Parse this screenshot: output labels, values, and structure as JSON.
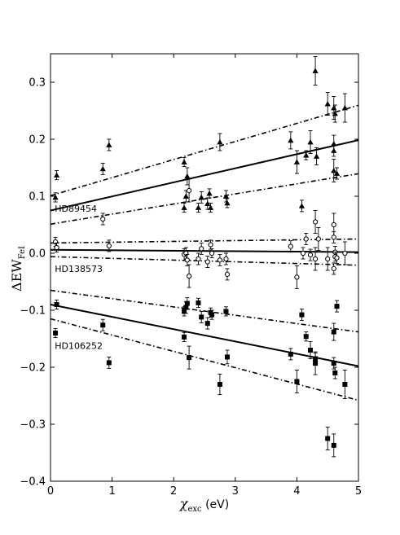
{
  "chart_data": {
    "type": "scatter",
    "title": "",
    "xlabel": {
      "main": "χ",
      "sub": "exc",
      "unit": " (eV)"
    },
    "ylabel": {
      "main": "ΔEW",
      "sub": "FeI"
    },
    "xlim": [
      0,
      5
    ],
    "ylim": [
      -0.4,
      0.35
    ],
    "xticks": [
      0,
      1,
      2,
      3,
      4,
      5
    ],
    "yticks": [
      -0.4,
      -0.3,
      -0.2,
      -0.1,
      0.0,
      0.1,
      0.2,
      0.3
    ],
    "xtick_labels": [
      "0",
      "1",
      "2",
      "3",
      "4",
      "5"
    ],
    "ytick_labels": [
      "−0.4",
      "−0.3",
      "−0.2",
      "−0.1",
      "0.0",
      "0.1",
      "0.2",
      "0.3"
    ],
    "grid": false,
    "series": [
      {
        "name": "HD89454",
        "marker": "triangle",
        "filled": true,
        "label_pos": [
          0.07,
          0.073
        ],
        "fit": {
          "intercept": 0.075,
          "slope": 0.0247
        },
        "upper": {
          "intercept": 0.101,
          "slope": 0.0317
        },
        "lower": {
          "intercept": 0.051,
          "slope": 0.0177
        },
        "points": [
          [
            0.08,
            0.098,
            0.008
          ],
          [
            0.1,
            0.137,
            0.008
          ],
          [
            0.85,
            0.148,
            0.01
          ],
          [
            0.95,
            0.19,
            0.01
          ],
          [
            2.17,
            0.16,
            0.008
          ],
          [
            2.17,
            0.08,
            0.008
          ],
          [
            2.2,
            0.1,
            0.01
          ],
          [
            2.22,
            0.135,
            0.015
          ],
          [
            2.4,
            0.08,
            0.008
          ],
          [
            2.45,
            0.098,
            0.01
          ],
          [
            2.55,
            0.087,
            0.01
          ],
          [
            2.58,
            0.105,
            0.008
          ],
          [
            2.6,
            0.08,
            0.008
          ],
          [
            2.75,
            0.195,
            0.015
          ],
          [
            2.85,
            0.1,
            0.01
          ],
          [
            2.87,
            0.088,
            0.008
          ],
          [
            3.9,
            0.198,
            0.015
          ],
          [
            4.0,
            0.16,
            0.02
          ],
          [
            4.08,
            0.083,
            0.01
          ],
          [
            4.15,
            0.172,
            0.008
          ],
          [
            4.22,
            0.195,
            0.02
          ],
          [
            4.3,
            0.32,
            0.025
          ],
          [
            4.32,
            0.17,
            0.015
          ],
          [
            4.5,
            0.262,
            0.02
          ],
          [
            4.6,
            0.255,
            0.02
          ],
          [
            4.62,
            0.245,
            0.015
          ],
          [
            4.6,
            0.192,
            0.015
          ],
          [
            4.6,
            0.18,
            0.01
          ],
          [
            4.6,
            0.145,
            0.02
          ],
          [
            4.65,
            0.14,
            0.01
          ],
          [
            4.78,
            0.255,
            0.025
          ]
        ]
      },
      {
        "name": "HD138573",
        "marker": "circle",
        "filled": false,
        "label_pos": [
          0.07,
          -0.033
        ],
        "fit": {
          "intercept": 0.006,
          "slope": -0.0008
        },
        "upper": {
          "intercept": 0.018,
          "slope": 0.0014
        },
        "lower": {
          "intercept": -0.006,
          "slope": -0.003
        },
        "points": [
          [
            0.08,
            0.02,
            0.008
          ],
          [
            0.1,
            0.01,
            0.008
          ],
          [
            0.85,
            0.06,
            0.01
          ],
          [
            0.95,
            0.013,
            0.01
          ],
          [
            2.17,
            -0.002,
            0.01
          ],
          [
            2.2,
            0.0,
            0.01
          ],
          [
            2.22,
            -0.012,
            0.01
          ],
          [
            2.25,
            0.11,
            0.02
          ],
          [
            2.25,
            -0.04,
            0.02
          ],
          [
            2.4,
            -0.01,
            0.01
          ],
          [
            2.45,
            0.008,
            0.01
          ],
          [
            2.55,
            -0.015,
            0.01
          ],
          [
            2.6,
            0.015,
            0.008
          ],
          [
            2.62,
            0.0,
            0.008
          ],
          [
            2.75,
            -0.012,
            0.01
          ],
          [
            2.85,
            -0.01,
            0.01
          ],
          [
            2.87,
            -0.037,
            0.01
          ],
          [
            3.9,
            0.012,
            0.01
          ],
          [
            4.0,
            -0.042,
            0.02
          ],
          [
            4.1,
            0.0,
            0.01
          ],
          [
            4.15,
            0.025,
            0.01
          ],
          [
            4.22,
            -0.003,
            0.01
          ],
          [
            4.3,
            0.055,
            0.02
          ],
          [
            4.3,
            -0.01,
            0.02
          ],
          [
            4.35,
            0.025,
            0.02
          ],
          [
            4.5,
            -0.01,
            0.02
          ],
          [
            4.6,
            0.05,
            0.02
          ],
          [
            4.6,
            0.028,
            0.01
          ],
          [
            4.62,
            0.002,
            0.01
          ],
          [
            4.62,
            -0.006,
            0.008
          ],
          [
            4.6,
            -0.027,
            0.01
          ],
          [
            4.65,
            -0.008,
            0.01
          ],
          [
            4.78,
            0.0,
            0.02
          ]
        ]
      },
      {
        "name": "HD106252",
        "marker": "square",
        "filled": true,
        "label_pos": [
          0.07,
          -0.168
        ],
        "fit": {
          "intercept": -0.09,
          "slope": -0.0216
        },
        "upper": {
          "intercept": -0.065,
          "slope": -0.0146
        },
        "lower": {
          "intercept": -0.115,
          "slope": -0.0286
        },
        "points": [
          [
            0.08,
            -0.14,
            0.008
          ],
          [
            0.1,
            -0.09,
            0.008
          ],
          [
            0.85,
            -0.126,
            0.01
          ],
          [
            0.95,
            -0.192,
            0.01
          ],
          [
            2.17,
            -0.147,
            0.008
          ],
          [
            2.17,
            -0.102,
            0.008
          ],
          [
            2.2,
            -0.095,
            0.01
          ],
          [
            2.22,
            -0.088,
            0.01
          ],
          [
            2.25,
            -0.183,
            0.02
          ],
          [
            2.4,
            -0.087,
            0.008
          ],
          [
            2.45,
            -0.112,
            0.01
          ],
          [
            2.55,
            -0.123,
            0.01
          ],
          [
            2.6,
            -0.104,
            0.008
          ],
          [
            2.62,
            -0.108,
            0.008
          ],
          [
            2.75,
            -0.23,
            0.018
          ],
          [
            2.85,
            -0.102,
            0.008
          ],
          [
            2.87,
            -0.182,
            0.012
          ],
          [
            3.9,
            -0.177,
            0.01
          ],
          [
            4.0,
            -0.225,
            0.02
          ],
          [
            4.08,
            -0.108,
            0.01
          ],
          [
            4.15,
            -0.146,
            0.008
          ],
          [
            4.22,
            -0.17,
            0.015
          ],
          [
            4.3,
            -0.193,
            0.02
          ],
          [
            4.3,
            -0.185,
            0.01
          ],
          [
            4.5,
            -0.325,
            0.02
          ],
          [
            4.6,
            -0.337,
            0.02
          ],
          [
            4.6,
            -0.138,
            0.015
          ],
          [
            4.6,
            -0.193,
            0.01
          ],
          [
            4.62,
            -0.21,
            0.01
          ],
          [
            4.65,
            -0.093,
            0.01
          ],
          [
            4.78,
            -0.23,
            0.025
          ]
        ]
      }
    ]
  }
}
